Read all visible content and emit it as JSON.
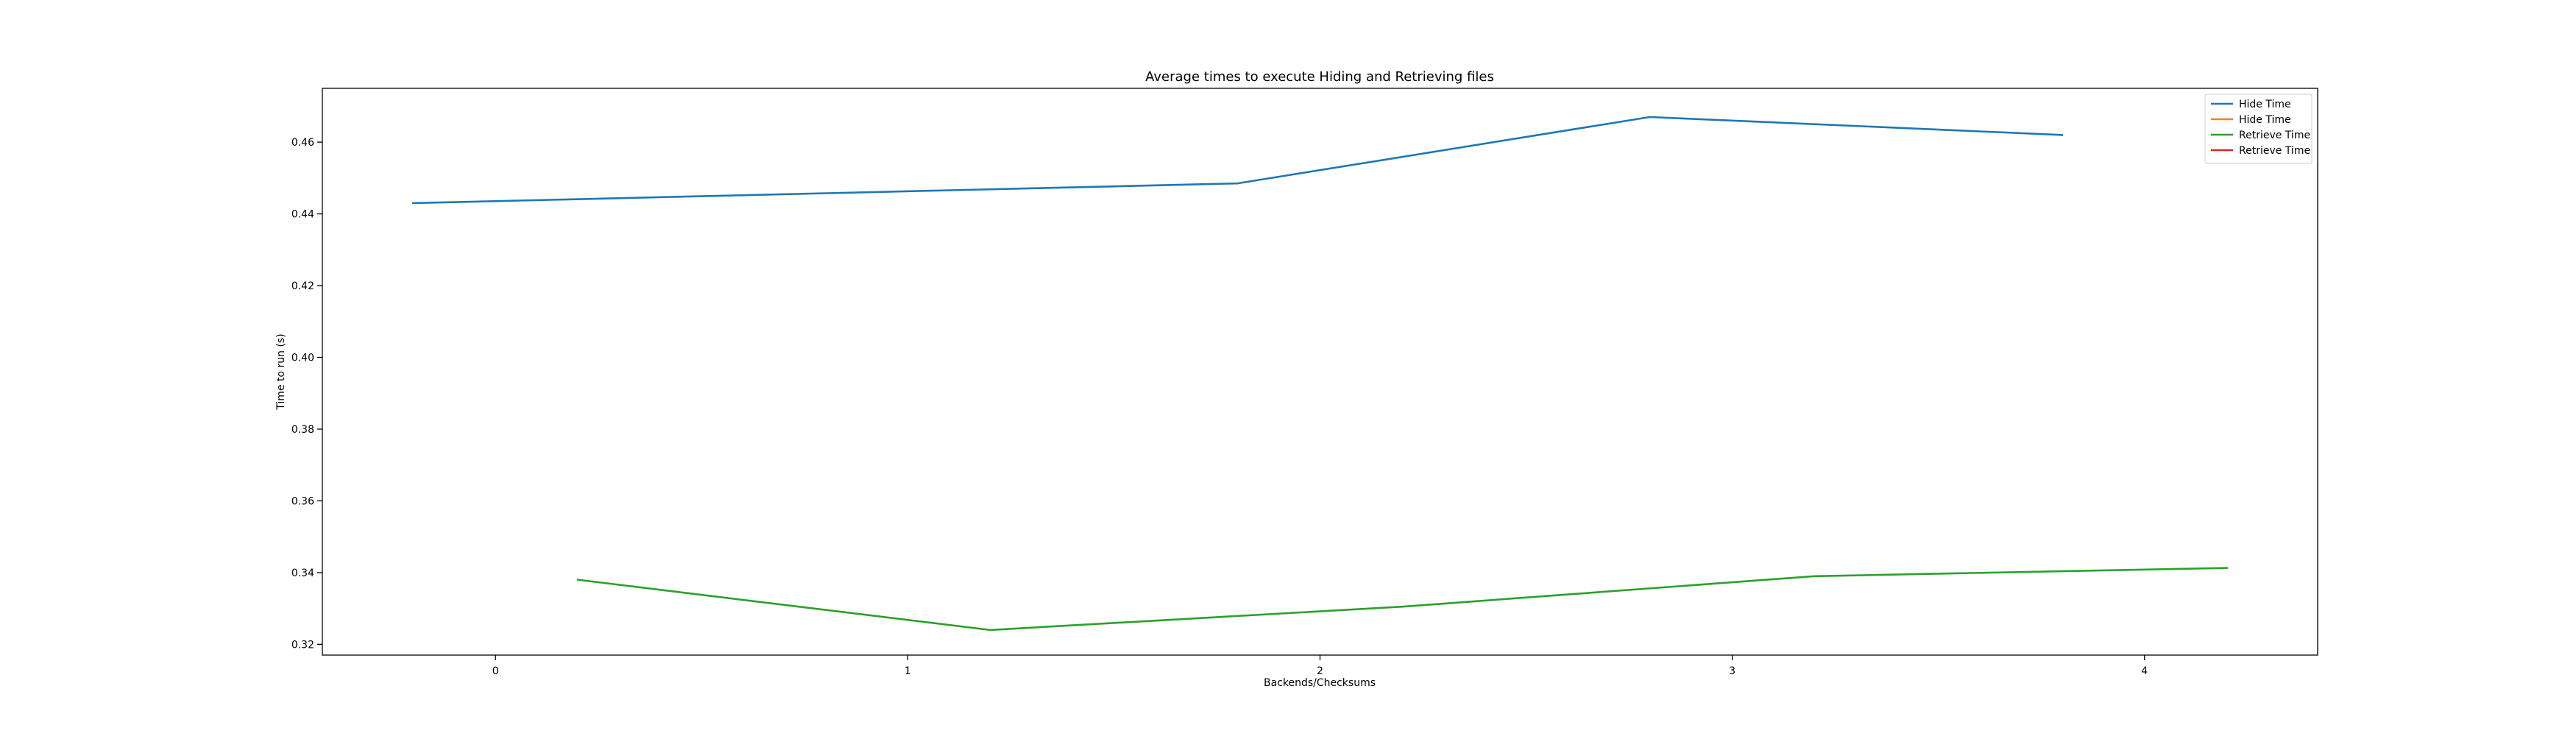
{
  "chart_data": {
    "type": "line",
    "title": "Average times to execute Hiding and Retrieving files",
    "xlabel": "Backends/Checksums",
    "ylabel": "Time to run (s)",
    "xlim": [
      -0.42,
      4.42
    ],
    "ylim": [
      0.317,
      0.475
    ],
    "xticks": [
      0,
      1,
      2,
      3,
      4
    ],
    "xtick_labels": [
      "0",
      "1",
      "2",
      "3",
      "4"
    ],
    "yticks": [
      0.32,
      0.34,
      0.36,
      0.38,
      0.4,
      0.42,
      0.44,
      0.46
    ],
    "ytick_labels": [
      "0.32",
      "0.34",
      "0.36",
      "0.38",
      "0.40",
      "0.42",
      "0.44",
      "0.46"
    ],
    "grid": false,
    "legend_position": "top-right",
    "series": [
      {
        "name": "Hide Time",
        "color": "#1f77b4",
        "x": [
          -0.2,
          1.8,
          2.8,
          3.8
        ],
        "y": [
          0.443,
          0.4485,
          0.467,
          0.462
        ]
      },
      {
        "name": "Hide Time",
        "color": "#ff7f0e",
        "x": [],
        "y": []
      },
      {
        "name": "Retrieve Time",
        "color": "#2ca02c",
        "x": [
          0.2,
          1.2,
          2.2,
          3.2,
          4.2
        ],
        "y": [
          0.338,
          0.324,
          0.3305,
          0.339,
          0.3413
        ]
      },
      {
        "name": "Retrieve Time",
        "color": "#d62728",
        "x": [],
        "y": []
      }
    ]
  }
}
